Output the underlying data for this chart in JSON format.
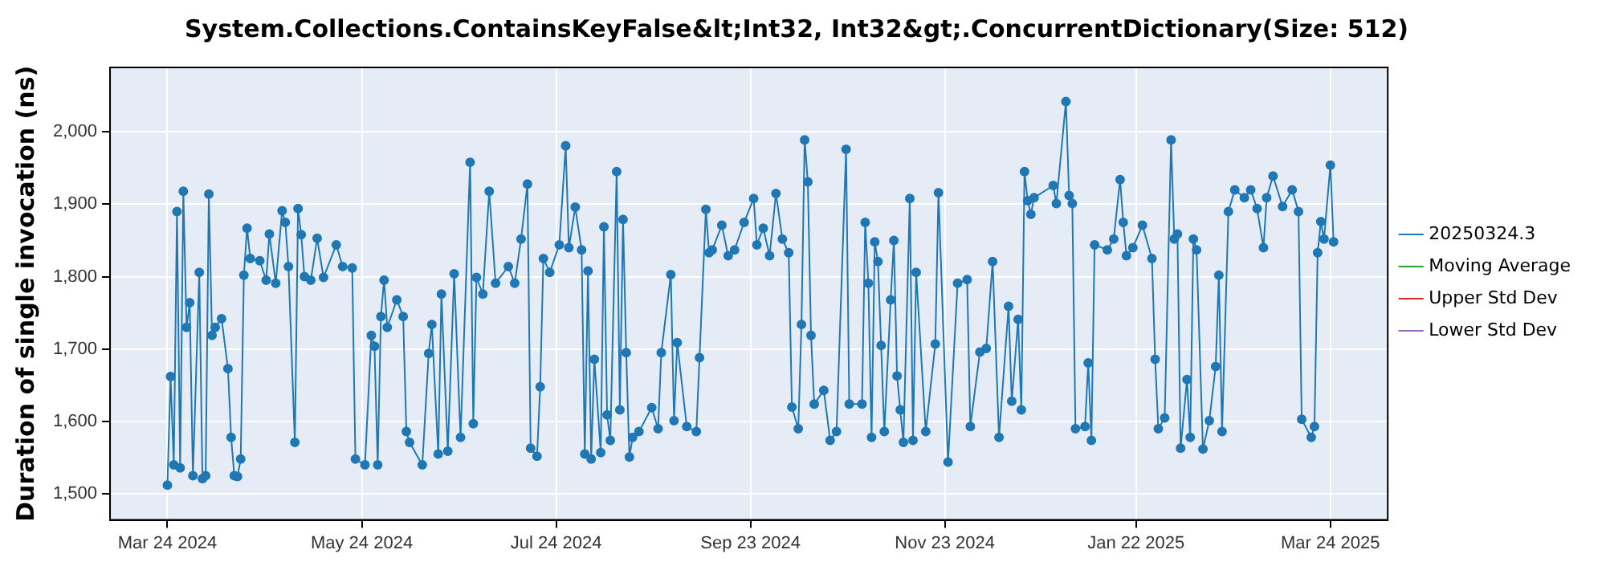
{
  "chart_data": {
    "type": "line",
    "title": "System.Collections.ContainsKeyFalse&lt;Int32, Int32&gt;.ConcurrentDictionary(Size: 512)",
    "ylabel": "Duration of single invocation (ns)",
    "xlim": [
      "2024-03-06",
      "2025-04-11"
    ],
    "xticks": [
      {
        "value": "2024-03-24",
        "label": "Mar 24 2024"
      },
      {
        "value": "2024-05-24",
        "label": "May 24 2024"
      },
      {
        "value": "2024-07-24",
        "label": "Jul 24 2024"
      },
      {
        "value": "2024-09-23",
        "label": "Sep 23 2024"
      },
      {
        "value": "2024-11-23",
        "label": "Nov 23 2024"
      },
      {
        "value": "2025-01-22",
        "label": "Jan 22 2025"
      },
      {
        "value": "2025-03-24",
        "label": "Mar 24 2025"
      }
    ],
    "ylim": [
      1464,
      2089
    ],
    "yticks": [
      {
        "value": 1500,
        "label": "1,500"
      },
      {
        "value": 1600,
        "label": "1,600"
      },
      {
        "value": 1700,
        "label": "1,700"
      },
      {
        "value": 1800,
        "label": "1,800"
      },
      {
        "value": 1900,
        "label": "1,900"
      },
      {
        "value": 2000,
        "label": "2,000"
      }
    ],
    "grid": true,
    "legend": "right",
    "marker": "circle",
    "series": [
      {
        "name": "20250324.3",
        "color": "#1f77b4",
        "x": [
          "2024-03-24",
          "2024-03-25",
          "2024-03-26",
          "2024-03-27",
          "2024-03-28",
          "2024-03-29",
          "2024-03-30",
          "2024-03-31",
          "2024-04-01",
          "2024-04-03",
          "2024-04-04",
          "2024-04-05",
          "2024-04-06",
          "2024-04-07",
          "2024-04-08",
          "2024-04-10",
          "2024-04-12",
          "2024-04-13",
          "2024-04-14",
          "2024-04-15",
          "2024-04-16",
          "2024-04-17",
          "2024-04-18",
          "2024-04-19",
          "2024-04-22",
          "2024-04-24",
          "2024-04-25",
          "2024-04-27",
          "2024-04-29",
          "2024-04-30",
          "2024-05-01",
          "2024-05-03",
          "2024-05-04",
          "2024-05-05",
          "2024-05-06",
          "2024-05-08",
          "2024-05-10",
          "2024-05-12",
          "2024-05-16",
          "2024-05-18",
          "2024-05-21",
          "2024-05-22",
          "2024-05-25",
          "2024-05-27",
          "2024-05-28",
          "2024-05-29",
          "2024-05-30",
          "2024-05-31",
          "2024-06-01",
          "2024-06-04",
          "2024-06-06",
          "2024-06-07",
          "2024-06-08",
          "2024-06-12",
          "2024-06-14",
          "2024-06-15",
          "2024-06-17",
          "2024-06-18",
          "2024-06-20",
          "2024-06-22",
          "2024-06-24",
          "2024-06-27",
          "2024-06-28",
          "2024-06-29",
          "2024-07-01",
          "2024-07-03",
          "2024-07-05",
          "2024-07-09",
          "2024-07-11",
          "2024-07-13",
          "2024-07-15",
          "2024-07-16",
          "2024-07-18",
          "2024-07-19",
          "2024-07-20",
          "2024-07-22",
          "2024-07-25",
          "2024-07-27",
          "2024-07-28",
          "2024-07-30",
          "2024-08-01",
          "2024-08-02",
          "2024-08-03",
          "2024-08-04",
          "2024-08-05",
          "2024-08-07",
          "2024-08-08",
          "2024-08-09",
          "2024-08-10",
          "2024-08-12",
          "2024-08-13",
          "2024-08-14",
          "2024-08-15",
          "2024-08-16",
          "2024-08-17",
          "2024-08-19",
          "2024-08-23",
          "2024-08-25",
          "2024-08-26",
          "2024-08-29",
          "2024-08-30",
          "2024-08-31",
          "2024-09-03",
          "2024-09-06",
          "2024-09-07",
          "2024-09-09",
          "2024-09-10",
          "2024-09-11",
          "2024-09-14",
          "2024-09-16",
          "2024-09-18",
          "2024-09-21",
          "2024-09-24",
          "2024-09-25",
          "2024-09-27",
          "2024-09-29",
          "2024-10-01",
          "2024-10-03",
          "2024-10-05",
          "2024-10-06",
          "2024-10-08",
          "2024-10-09",
          "2024-10-10",
          "2024-10-11",
          "2024-10-12",
          "2024-10-13",
          "2024-10-16",
          "2024-10-18",
          "2024-10-20",
          "2024-10-23",
          "2024-10-24",
          "2024-10-28",
          "2024-10-29",
          "2024-10-30",
          "2024-10-31",
          "2024-11-01",
          "2024-11-02",
          "2024-11-03",
          "2024-11-04",
          "2024-11-06",
          "2024-11-07",
          "2024-11-08",
          "2024-11-09",
          "2024-11-10",
          "2024-11-12",
          "2024-11-13",
          "2024-11-14",
          "2024-11-17",
          "2024-11-20",
          "2024-11-21",
          "2024-11-24",
          "2024-11-27",
          "2024-11-30",
          "2024-12-01",
          "2024-12-04",
          "2024-12-06",
          "2024-12-08",
          "2024-12-10",
          "2024-12-13",
          "2024-12-14",
          "2024-12-16",
          "2024-12-17",
          "2024-12-18",
          "2024-12-19",
          "2024-12-20",
          "2024-12-21",
          "2024-12-27",
          "2024-12-28",
          "2024-12-31",
          "2025-01-01",
          "2025-01-02",
          "2025-01-03",
          "2025-01-06",
          "2025-01-07",
          "2025-01-08",
          "2025-01-09",
          "2025-01-13",
          "2025-01-15",
          "2025-01-17",
          "2025-01-18",
          "2025-01-19",
          "2025-01-21",
          "2025-01-24",
          "2025-01-27",
          "2025-01-28",
          "2025-01-29",
          "2025-01-31",
          "2025-02-02",
          "2025-02-03",
          "2025-02-04",
          "2025-02-05",
          "2025-02-07",
          "2025-02-08",
          "2025-02-09",
          "2025-02-10",
          "2025-02-12",
          "2025-02-14",
          "2025-02-16",
          "2025-02-17",
          "2025-02-18",
          "2025-02-20",
          "2025-02-22",
          "2025-02-25",
          "2025-02-27",
          "2025-03-01",
          "2025-03-03",
          "2025-03-04",
          "2025-03-06",
          "2025-03-09",
          "2025-03-12",
          "2025-03-14",
          "2025-03-15",
          "2025-03-18",
          "2025-03-19",
          "2025-03-20",
          "2025-03-21",
          "2025-03-22",
          "2025-03-24",
          "2025-03-25"
        ],
        "values": [
          1512,
          1662,
          1540,
          1890,
          1536,
          1918,
          1730,
          1764,
          1525,
          1806,
          1521,
          1525,
          1914,
          1719,
          1730,
          1742,
          1673,
          1578,
          1525,
          1524,
          1548,
          1802,
          1867,
          1825,
          1822,
          1795,
          1859,
          1791,
          1891,
          1875,
          1814,
          1571,
          1894,
          1858,
          1800,
          1795,
          1853,
          1799,
          1844,
          1814,
          1812,
          1548,
          1540,
          1719,
          1704,
          1540,
          1745,
          1795,
          1730,
          1768,
          1745,
          1586,
          1571,
          1540,
          1694,
          1734,
          1555,
          1776,
          1559,
          1804,
          1578,
          1958,
          1597,
          1799,
          1776,
          1918,
          1791,
          1814,
          1791,
          1852,
          1928,
          1563,
          1552,
          1648,
          1825,
          1806,
          1844,
          1981,
          1840,
          1896,
          1837,
          1555,
          1808,
          1548,
          1686,
          1557,
          1869,
          1609,
          1574,
          1945,
          1616,
          1879,
          1695,
          1551,
          1578,
          1586,
          1619,
          1590,
          1695,
          1803,
          1601,
          1709,
          1593,
          1586,
          1688,
          1893,
          1833,
          1837,
          1871,
          1829,
          1837,
          1875,
          1908,
          1844,
          1867,
          1829,
          1915,
          1852,
          1833,
          1620,
          1590,
          1734,
          1989,
          1931,
          1719,
          1624,
          1643,
          1574,
          1586,
          1976,
          1624,
          1624,
          1875,
          1791,
          1578,
          1848,
          1821,
          1705,
          1586,
          1768,
          1850,
          1663,
          1616,
          1571,
          1908,
          1574,
          1806,
          1586,
          1707,
          1916,
          1544,
          1791,
          1796,
          1593,
          1696,
          1701,
          1821,
          1578,
          1759,
          1628,
          1741,
          1616,
          1945,
          1905,
          1886,
          1909,
          1926,
          1901,
          2042,
          1912,
          1901,
          1590,
          1593,
          1681,
          1574,
          1844,
          1837,
          1852,
          1934,
          1875,
          1829,
          1840,
          1871,
          1825,
          1686,
          1590,
          1605,
          1989,
          1852,
          1859,
          1563,
          1658,
          1578,
          1852,
          1837,
          1562,
          1601,
          1676,
          1802,
          1586,
          1890,
          1920,
          1909,
          1920,
          1894,
          1840,
          1909,
          1939,
          1897,
          1920,
          1890,
          1603,
          1578,
          1593,
          1833,
          1876,
          1852,
          1954,
          1848
        ]
      },
      {
        "name": "Moving Average",
        "color": "#2ca02c"
      },
      {
        "name": "Upper Std Dev",
        "color": "#d62728"
      },
      {
        "name": "Lower Std Dev",
        "color": "#9467bd"
      }
    ]
  }
}
